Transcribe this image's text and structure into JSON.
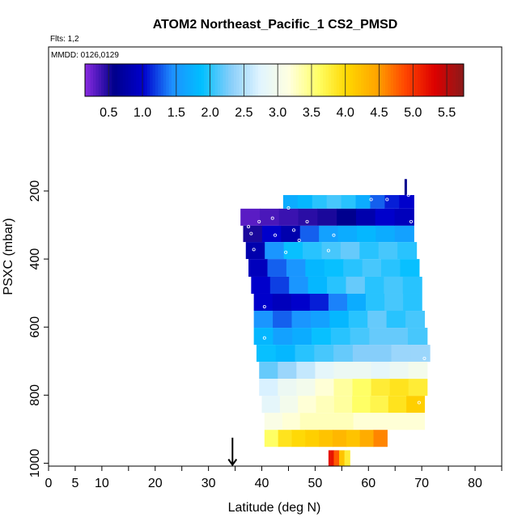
{
  "chart_data": {
    "type": "heatmap",
    "title": "ATOM2 Northeast_Pacific_1 CS2_PMSD",
    "flights_label": "Flts: 1,2",
    "mmdd_label": "MMDD: 0126,0129",
    "xlabel": "Latitude (deg N)",
    "ylabel": "PSXC (mbar)",
    "x_ticks": [
      0,
      5,
      10,
      20,
      30,
      40,
      50,
      60,
      70,
      80
    ],
    "x_minor_ticks": [
      15,
      25,
      35,
      45,
      55,
      65,
      75,
      85
    ],
    "y_ticks": [
      200,
      400,
      600,
      800,
      1000
    ],
    "xlim": [
      0,
      85
    ],
    "ylim": [
      1010,
      0
    ],
    "colorbar": {
      "range": [
        0.15,
        5.75
      ],
      "ticks": [
        0.5,
        1.0,
        1.5,
        2.0,
        2.5,
        3.0,
        3.5,
        4.0,
        4.5,
        5.0,
        5.5
      ],
      "tick_labels": [
        "0.5",
        "1.0",
        "1.5",
        "2.0",
        "2.5",
        "3.0",
        "3.5",
        "4.0",
        "4.5",
        "5.0",
        "5.5"
      ],
      "colors": [
        "#8a2be2",
        "#00008b",
        "#0000cd",
        "#1e90ff",
        "#00bfff",
        "#87cefa",
        "#e0f4ff",
        "#ffffe0",
        "#ffff66",
        "#ffd700",
        "#ffa500",
        "#ff4500",
        "#dd0000",
        "#8b1a1a"
      ]
    },
    "bands": [
      {
        "p_top": 212,
        "p_bot": 252,
        "lat_start": 44.0,
        "lat_end": 68.5,
        "values": [
          1.7,
          1.8,
          2.0,
          2.1,
          2.0,
          1.7,
          1.3,
          1.1,
          1.0
        ]
      },
      {
        "p_top": 252,
        "p_bot": 302,
        "lat_start": 36.0,
        "lat_end": 68.5,
        "values": [
          0.3,
          0.35,
          0.4,
          0.45,
          0.5,
          0.6,
          0.8,
          1.0,
          0.9
        ]
      },
      {
        "p_top": 302,
        "p_bot": 350,
        "lat_start": 36.5,
        "lat_end": 68.5,
        "values": [
          0.5,
          1.0,
          0.8,
          1.3,
          1.6,
          1.7,
          1.8,
          1.7,
          1.6
        ]
      },
      {
        "p_top": 350,
        "p_bot": 400,
        "lat_start": 37.0,
        "lat_end": 69.0,
        "values": [
          0.8,
          1.5,
          1.9,
          2.0,
          2.1,
          2.2,
          2.0,
          2.1,
          2.0
        ]
      },
      {
        "p_top": 400,
        "p_bot": 452,
        "lat_start": 37.5,
        "lat_end": 69.5,
        "values": [
          0.9,
          1.3,
          1.5,
          1.8,
          1.9,
          2.0,
          2.1,
          2.0,
          1.9
        ]
      },
      {
        "p_top": 452,
        "p_bot": 502,
        "lat_start": 38.0,
        "lat_end": 70.0,
        "values": [
          1.0,
          1.2,
          1.5,
          1.8,
          2.0,
          2.2,
          2.0,
          2.1,
          2.0
        ]
      },
      {
        "p_top": 502,
        "p_bot": 552,
        "lat_start": 38.5,
        "lat_end": 70.0,
        "values": [
          1.0,
          0.9,
          1.0,
          1.1,
          1.4,
          1.7,
          2.0,
          2.1,
          2.0
        ]
      },
      {
        "p_top": 552,
        "p_bot": 602,
        "lat_start": 38.5,
        "lat_end": 70.5,
        "values": [
          1.5,
          1.3,
          1.5,
          1.6,
          1.8,
          2.0,
          2.2,
          2.0,
          2.1
        ]
      },
      {
        "p_top": 602,
        "p_bot": 652,
        "lat_start": 38.5,
        "lat_end": 71.0,
        "values": [
          1.8,
          1.6,
          1.7,
          1.9,
          2.0,
          2.1,
          2.2,
          2.2,
          2.1
        ]
      },
      {
        "p_top": 652,
        "p_bot": 702,
        "lat_start": 39.0,
        "lat_end": 71.5,
        "values": [
          1.9,
          1.8,
          2.0,
          2.1,
          2.2,
          2.3,
          2.3,
          2.4,
          2.4
        ]
      },
      {
        "p_top": 702,
        "p_bot": 752,
        "lat_start": 39.5,
        "lat_end": 71.0,
        "values": [
          2.2,
          2.4,
          2.6,
          2.8,
          2.9,
          2.9,
          2.8,
          2.9,
          3.0
        ]
      },
      {
        "p_top": 752,
        "p_bot": 802,
        "lat_start": 39.5,
        "lat_end": 71.0,
        "values": [
          2.7,
          2.9,
          3.0,
          3.2,
          3.4,
          3.6,
          3.8,
          3.9,
          3.8
        ]
      },
      {
        "p_top": 802,
        "p_bot": 852,
        "lat_start": 40.0,
        "lat_end": 70.5,
        "values": [
          2.8,
          3.0,
          3.2,
          3.3,
          3.4,
          3.6,
          3.7,
          3.9,
          4.1
        ]
      },
      {
        "p_top": 852,
        "p_bot": 902,
        "lat_start": 40.5,
        "lat_end": 70.5,
        "values": [
          3.1,
          3.2,
          3.3,
          3.3,
          3.3,
          3.2,
          3.2,
          3.2,
          3.2
        ]
      },
      {
        "p_top": 902,
        "p_bot": 952,
        "lat_start": 40.5,
        "lat_end": 63.5,
        "values": [
          3.6,
          3.9,
          4.0,
          4.1,
          4.2,
          4.3,
          4.2,
          4.4,
          4.6
        ]
      },
      {
        "p_top": 962,
        "p_bot": 1010,
        "lat_start": 52.5,
        "lat_end": 56.5,
        "values": [
          5.2,
          4.8,
          4.2,
          3.8
        ]
      }
    ],
    "cap": {
      "lat": 67.0,
      "p_top": 165,
      "p_bot": 212,
      "value": 0.6
    },
    "points": [
      {
        "lat": 67.5,
        "p": 212
      },
      {
        "lat": 60.5,
        "p": 225
      },
      {
        "lat": 63.5,
        "p": 225
      },
      {
        "lat": 45.0,
        "p": 250
      },
      {
        "lat": 68.0,
        "p": 290
      },
      {
        "lat": 48.5,
        "p": 290
      },
      {
        "lat": 39.5,
        "p": 290
      },
      {
        "lat": 37.5,
        "p": 305
      },
      {
        "lat": 42.0,
        "p": 280
      },
      {
        "lat": 38.0,
        "p": 325
      },
      {
        "lat": 42.5,
        "p": 330
      },
      {
        "lat": 46.0,
        "p": 315
      },
      {
        "lat": 47.0,
        "p": 345
      },
      {
        "lat": 53.5,
        "p": 330
      },
      {
        "lat": 38.5,
        "p": 372
      },
      {
        "lat": 44.5,
        "p": 380
      },
      {
        "lat": 52.5,
        "p": 375
      },
      {
        "lat": 40.5,
        "p": 540
      },
      {
        "lat": 40.5,
        "p": 632
      },
      {
        "lat": 70.5,
        "p": 692
      },
      {
        "lat": 69.5,
        "p": 822
      }
    ],
    "arrow": {
      "lat": 34.5,
      "p_top": 925,
      "p_bot": 1005
    }
  }
}
